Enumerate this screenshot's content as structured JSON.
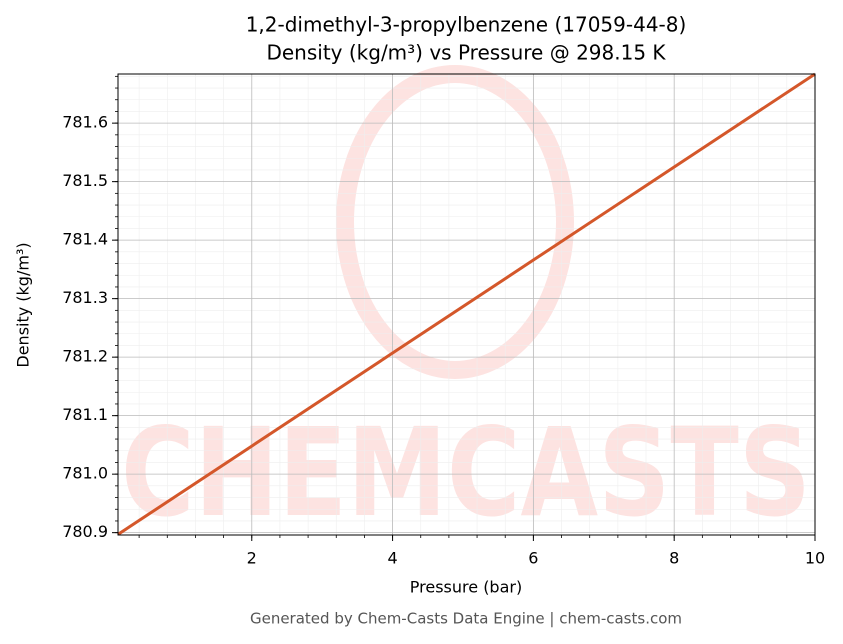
{
  "chart_data": {
    "type": "line",
    "title": "1,2-dimethyl-3-propylbenzene (17059-44-8)",
    "subtitle": "Density (kg/m³) vs Pressure @ 298.15 K",
    "x_label": "Pressure (bar)",
    "y_label": "Density (kg/m³)",
    "footer": "Generated by Chem-Casts Data Engine | chem-casts.com",
    "watermark": "CHEMCASTS",
    "x": [
      0.1,
      2,
      4,
      6,
      8,
      10
    ],
    "series": [
      {
        "name": "Density",
        "color": "#d4572a",
        "values": [
          780.897,
          781.048,
          781.207,
          781.366,
          781.525,
          781.684
        ]
      }
    ],
    "xlim": [
      0.1,
      10
    ],
    "xticks": [
      2,
      4,
      6,
      8,
      10
    ],
    "ylim": [
      780.896,
      781.684
    ],
    "yticks": [
      {
        "value": 780.9,
        "label": "780.9"
      },
      {
        "value": 781.0,
        "label": "781.0"
      },
      781.1,
      781.2,
      781.3,
      781.4,
      781.5,
      781.6
    ],
    "grid": true
  }
}
